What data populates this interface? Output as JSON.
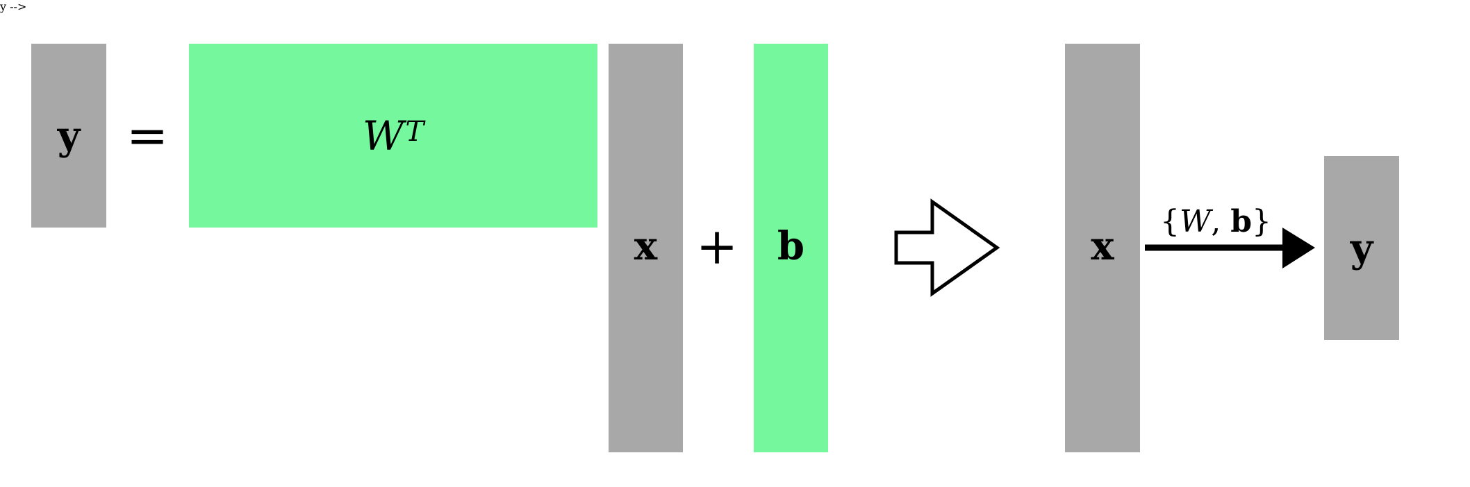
{
  "equation": {
    "lhs": "y",
    "equals": "=",
    "weight_symbol": "W",
    "weight_superscript": "T",
    "input": "x",
    "plus": "+",
    "bias": "b"
  },
  "compact": {
    "input": "x",
    "output": "y",
    "params_open": "{",
    "params_w": "W",
    "params_sep": ", ",
    "params_b": "b",
    "params_close": "}"
  },
  "colors": {
    "vector": "#a8a8a8",
    "parameter": "#74f79d",
    "ink": "#000000"
  }
}
